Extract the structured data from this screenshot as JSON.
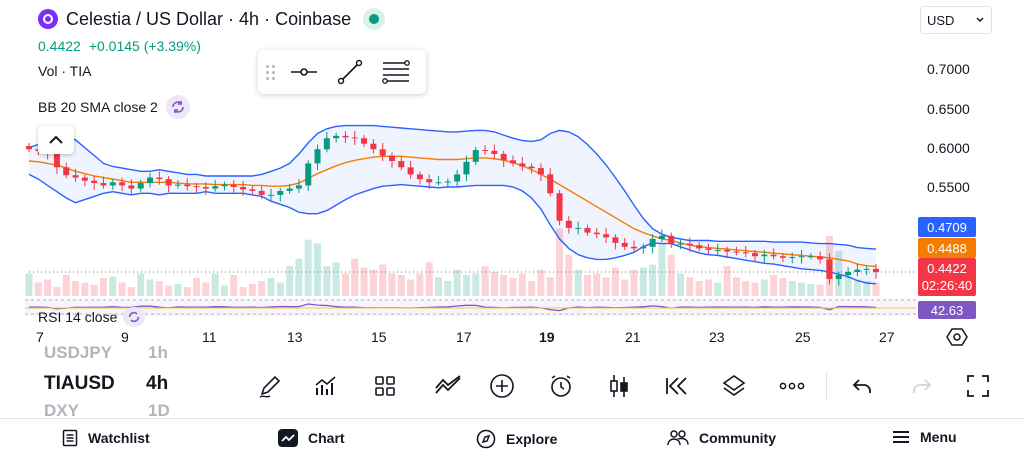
{
  "header": {
    "symbol_title": "Celestia / US Dollar · 4h · Coinbase",
    "last_price": "0.4422",
    "change": "+0.0145 (+3.39%)"
  },
  "legends": {
    "volume": "Vol · TIA",
    "bollinger": "BB 20 SMA close 2",
    "rsi": "RSI 14 close"
  },
  "currency_selector": {
    "value": "USD"
  },
  "price_axis": [
    "0.7000",
    "0.6500",
    "0.6000",
    "0.5500"
  ],
  "price_badges": {
    "bb_upper": "0.4709",
    "bb_basis": "0.4488",
    "last_price": "0.4422",
    "countdown": "02:26:40",
    "rsi": "42.63"
  },
  "time_axis": [
    "7",
    "9",
    "11",
    "13",
    "15",
    "17",
    "19",
    "21",
    "23",
    "25",
    "27"
  ],
  "ticker_wheel": {
    "above": {
      "symbol": "USDJPY",
      "interval": "1h"
    },
    "current": {
      "symbol": "TIAUSD",
      "interval": "4h"
    },
    "below": {
      "symbol": "DXY",
      "interval": "1D"
    }
  },
  "bottom_toolbar_icons": [
    "pen-icon",
    "indicators-icon",
    "templates-icon",
    "chart-style-icon",
    "add-icon",
    "alert-icon",
    "candlestick-icon",
    "replay-icon",
    "layers-icon",
    "more-icon",
    "undo-icon",
    "redo-icon",
    "fullscreen-icon"
  ],
  "nav": [
    {
      "label": "Watchlist",
      "icon": "list-icon"
    },
    {
      "label": "Chart",
      "icon": "chart-icon"
    },
    {
      "label": "Explore",
      "icon": "compass-icon"
    },
    {
      "label": "Community",
      "icon": "people-icon"
    },
    {
      "label": "Menu",
      "icon": "menu-icon"
    }
  ],
  "colors": {
    "up": "#089981",
    "down": "#f23645",
    "bb_band": "#2962ff",
    "bb_basis": "#f57c00",
    "rsi": "#7e57c2",
    "accent": "#7b2ff7"
  },
  "chart_data": {
    "type": "candlestick",
    "y_range": [
      0.42,
      0.72
    ],
    "x_ticks": [
      "7",
      "9",
      "11",
      "13",
      "15",
      "17",
      "19",
      "21",
      "23",
      "25",
      "27"
    ],
    "close": [
      0.598,
      0.596,
      0.592,
      0.575,
      0.565,
      0.562,
      0.558,
      0.555,
      0.552,
      0.556,
      0.552,
      0.548,
      0.555,
      0.562,
      0.56,
      0.552,
      0.553,
      0.551,
      0.55,
      0.548,
      0.551,
      0.553,
      0.55,
      0.547,
      0.545,
      0.54,
      0.54,
      0.545,
      0.548,
      0.552,
      0.58,
      0.598,
      0.612,
      0.615,
      0.613,
      0.612,
      0.605,
      0.598,
      0.59,
      0.583,
      0.575,
      0.566,
      0.56,
      0.556,
      0.556,
      0.557,
      0.566,
      0.582,
      0.597,
      0.596,
      0.592,
      0.584,
      0.58,
      0.576,
      0.574,
      0.566,
      0.542,
      0.507,
      0.498,
      0.498,
      0.492,
      0.49,
      0.486,
      0.479,
      0.474,
      0.472,
      0.474,
      0.484,
      0.488,
      0.478,
      0.478,
      0.476,
      0.472,
      0.47,
      0.47,
      0.468,
      0.467,
      0.466,
      0.462,
      0.464,
      0.462,
      0.46,
      0.461,
      0.462,
      0.462,
      0.458,
      0.433,
      0.438,
      0.442,
      0.445,
      0.446,
      0.442
    ],
    "volume": [
      0.3,
      0.18,
      0.22,
      0.12,
      0.28,
      0.2,
      0.18,
      0.15,
      0.24,
      0.26,
      0.18,
      0.12,
      0.3,
      0.22,
      0.2,
      0.14,
      0.16,
      0.12,
      0.24,
      0.18,
      0.3,
      0.14,
      0.28,
      0.12,
      0.16,
      0.2,
      0.24,
      0.18,
      0.4,
      0.5,
      0.75,
      0.7,
      0.4,
      0.45,
      0.3,
      0.5,
      0.38,
      0.35,
      0.42,
      0.3,
      0.28,
      0.22,
      0.3,
      0.45,
      0.25,
      0.2,
      0.35,
      0.28,
      0.3,
      0.4,
      0.32,
      0.28,
      0.24,
      0.3,
      0.2,
      0.35,
      0.25,
      0.9,
      0.55,
      0.35,
      0.28,
      0.3,
      0.25,
      0.38,
      0.22,
      0.35,
      0.38,
      0.42,
      0.7,
      0.55,
      0.3,
      0.25,
      0.2,
      0.22,
      0.18,
      0.4,
      0.25,
      0.2,
      0.18,
      0.22,
      0.28,
      0.24,
      0.2,
      0.18,
      0.16,
      0.15,
      0.8,
      0.6,
      0.25,
      0.22,
      0.2,
      0.18
    ],
    "series": [
      {
        "name": "BB upper",
        "values": [
          0.6,
          0.604,
          0.608,
          0.612,
          0.612,
          0.61,
          0.6,
          0.59,
          0.58,
          0.576,
          0.574,
          0.572,
          0.57,
          0.57,
          0.572,
          0.57,
          0.568,
          0.566,
          0.566,
          0.564,
          0.564,
          0.564,
          0.564,
          0.564,
          0.564,
          0.566,
          0.57,
          0.574,
          0.58,
          0.592,
          0.606,
          0.618,
          0.624,
          0.627,
          0.628,
          0.628,
          0.628,
          0.628,
          0.627,
          0.626,
          0.625,
          0.624,
          0.623,
          0.622,
          0.621,
          0.62,
          0.62,
          0.621,
          0.622,
          0.622,
          0.62,
          0.616,
          0.612,
          0.609,
          0.608,
          0.61,
          0.618,
          0.622,
          0.62,
          0.614,
          0.604,
          0.592,
          0.578,
          0.562,
          0.545,
          0.527,
          0.51,
          0.497,
          0.49,
          0.486,
          0.484,
          0.482,
          0.482,
          0.482,
          0.481,
          0.481,
          0.481,
          0.481,
          0.481,
          0.481,
          0.48,
          0.48,
          0.48,
          0.48,
          0.479,
          0.478,
          0.478,
          0.477,
          0.476,
          0.473,
          0.472,
          0.471
        ]
      },
      {
        "name": "BB basis",
        "values": [
          0.583,
          0.582,
          0.58,
          0.578,
          0.574,
          0.57,
          0.567,
          0.564,
          0.562,
          0.56,
          0.558,
          0.556,
          0.556,
          0.556,
          0.556,
          0.556,
          0.555,
          0.554,
          0.554,
          0.554,
          0.553,
          0.553,
          0.553,
          0.553,
          0.552,
          0.552,
          0.551,
          0.551,
          0.552,
          0.555,
          0.561,
          0.567,
          0.572,
          0.577,
          0.581,
          0.584,
          0.586,
          0.588,
          0.589,
          0.589,
          0.589,
          0.588,
          0.587,
          0.586,
          0.585,
          0.585,
          0.585,
          0.586,
          0.587,
          0.587,
          0.586,
          0.584,
          0.581,
          0.577,
          0.572,
          0.566,
          0.56,
          0.553,
          0.546,
          0.539,
          0.532,
          0.525,
          0.518,
          0.511,
          0.504,
          0.497,
          0.492,
          0.488,
          0.484,
          0.482,
          0.479,
          0.476,
          0.474,
          0.473,
          0.472,
          0.471,
          0.47,
          0.469,
          0.468,
          0.467,
          0.466,
          0.465,
          0.464,
          0.463,
          0.462,
          0.461,
          0.46,
          0.458,
          0.456,
          0.452,
          0.45,
          0.449
        ]
      },
      {
        "name": "BB lower",
        "values": [
          0.566,
          0.56,
          0.552,
          0.544,
          0.536,
          0.53,
          0.534,
          0.538,
          0.542,
          0.544,
          0.542,
          0.54,
          0.542,
          0.542,
          0.54,
          0.542,
          0.542,
          0.542,
          0.542,
          0.544,
          0.542,
          0.542,
          0.542,
          0.542,
          0.54,
          0.538,
          0.532,
          0.528,
          0.524,
          0.518,
          0.516,
          0.516,
          0.52,
          0.527,
          0.534,
          0.54,
          0.544,
          0.548,
          0.551,
          0.552,
          0.553,
          0.552,
          0.551,
          0.55,
          0.549,
          0.55,
          0.55,
          0.551,
          0.552,
          0.552,
          0.552,
          0.552,
          0.55,
          0.545,
          0.536,
          0.522,
          0.502,
          0.484,
          0.472,
          0.464,
          0.46,
          0.458,
          0.458,
          0.46,
          0.463,
          0.467,
          0.474,
          0.479,
          0.478,
          0.478,
          0.474,
          0.47,
          0.466,
          0.464,
          0.463,
          0.461,
          0.459,
          0.457,
          0.455,
          0.453,
          0.452,
          0.45,
          0.448,
          0.446,
          0.445,
          0.444,
          0.442,
          0.439,
          0.436,
          0.431,
          0.428,
          0.427
        ]
      }
    ],
    "rsi_last": 42.63
  }
}
